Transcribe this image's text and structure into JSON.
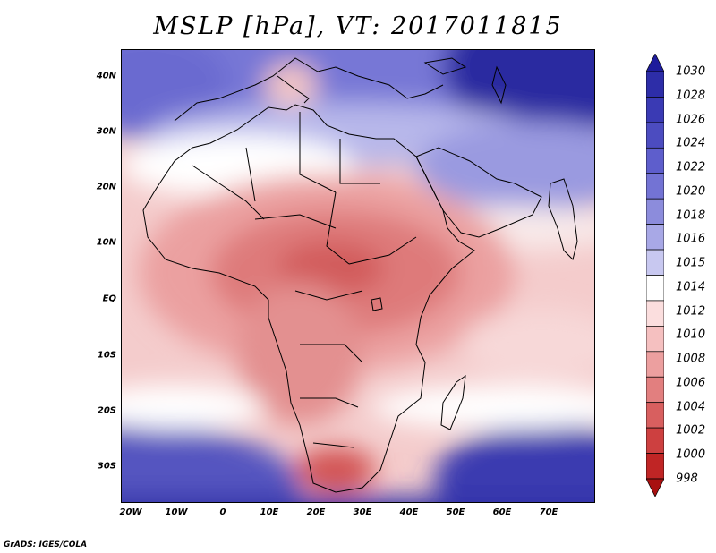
{
  "title": "MSLP [hPa], VT: 2017011815",
  "credit": "GrADS: IGES/COLA",
  "lat_labels": [
    "40N",
    "30N",
    "20N",
    "10N",
    "EQ",
    "10S",
    "20S",
    "30S"
  ],
  "lon_labels": [
    "20W",
    "10W",
    "0",
    "10E",
    "20E",
    "30E",
    "40E",
    "50E",
    "60E",
    "70E"
  ],
  "legend": {
    "levels": [
      "1030",
      "1028",
      "1026",
      "1024",
      "1022",
      "1020",
      "1018",
      "1016",
      "1015",
      "1014",
      "1012",
      "1010",
      "1008",
      "1006",
      "1004",
      "1002",
      "1000",
      "998"
    ],
    "colors": [
      "#1e1c9c",
      "#2d2da8",
      "#3a3ab4",
      "#4c4cc0",
      "#5e5ecc",
      "#7373d4",
      "#8c8cdc",
      "#a8a8e6",
      "#c8c8f0",
      "#ffffff",
      "#fbdede",
      "#f5c0c0",
      "#ec9f9f",
      "#e27f7f",
      "#d85f5f",
      "#cd4040",
      "#c02525",
      "#a81010"
    ]
  },
  "colors": {
    "high": "#2a2aa8",
    "low": "#c83030",
    "neutral": "#ffffff"
  }
}
